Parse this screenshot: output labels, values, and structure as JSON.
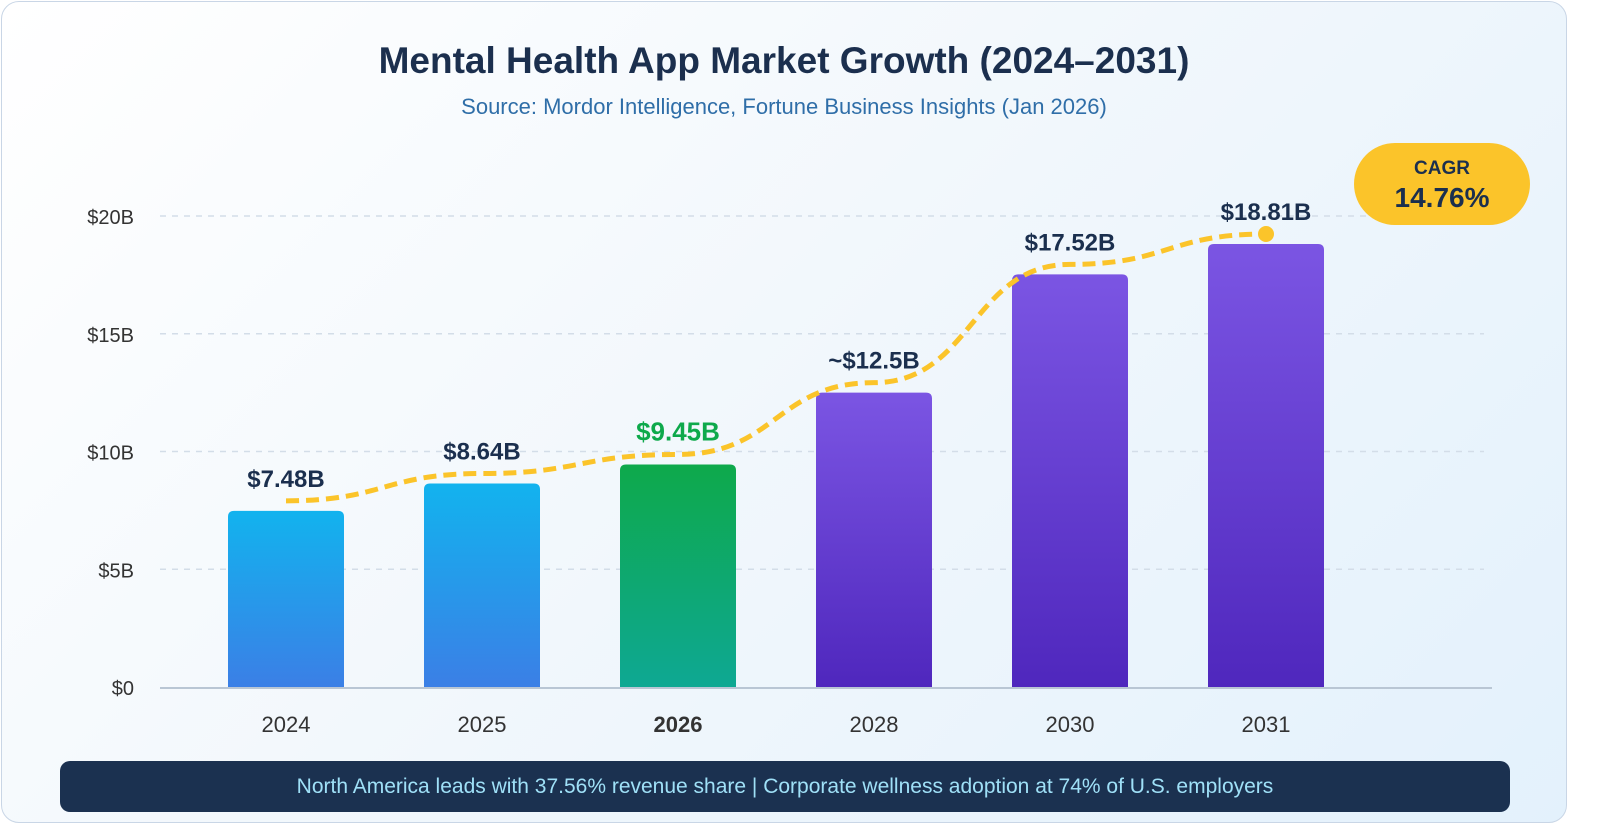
{
  "title": "Mental Health App Market Growth (2024–2031)",
  "subtitle": "Source: Mordor Intelligence, Fortune Business Insights (Jan 2026)",
  "cagr": {
    "label": "CAGR",
    "value": "14.76%",
    "color": "#fbc42a"
  },
  "footer": "North America leads with 37.56% revenue share | Corporate wellness adoption at 74% of U.S. employers",
  "chart_data": {
    "type": "bar",
    "categories": [
      "2024",
      "2025",
      "2026",
      "2028",
      "2030",
      "2031"
    ],
    "values": [
      7.48,
      8.64,
      9.45,
      12.5,
      17.52,
      18.81
    ],
    "data_labels": [
      "$7.48B",
      "$8.64B",
      "$9.45B",
      "~$12.5B",
      "$17.52B",
      "$18.81B"
    ],
    "highlight": "2026",
    "bar_colors": {
      "historical": [
        "#12b3ee",
        "#3b7fe6"
      ],
      "current": [
        "#0ea94b",
        "#0ea893"
      ],
      "forecast": [
        "#7b55e3",
        "#4f27bd"
      ]
    },
    "trend_line": {
      "style": "dashed",
      "color": "#fbc42a"
    },
    "yticks": [
      "$0",
      "$5B",
      "$10B",
      "$15B",
      "$20B"
    ],
    "ytick_values": [
      0,
      5,
      10,
      15,
      20
    ],
    "ylim": [
      0,
      20
    ],
    "grid": true,
    "xlabel": "",
    "ylabel": ""
  }
}
